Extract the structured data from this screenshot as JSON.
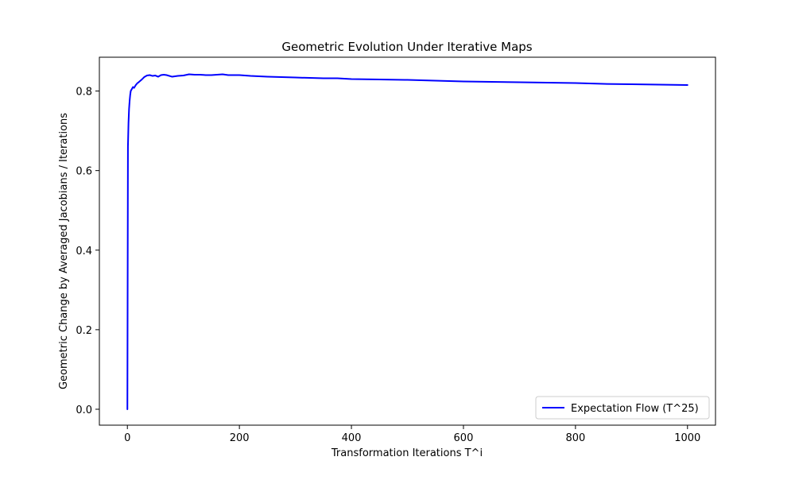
{
  "chart_data": {
    "type": "line",
    "title": "Geometric Evolution Under Iterative Maps",
    "xlabel": "Transformation Iterations T^i",
    "ylabel": "Geometric Change by Averaged Jacobians / Iterations",
    "xlim": [
      -50,
      1050
    ],
    "ylim": [
      -0.04,
      0.885
    ],
    "xticks": [
      0,
      200,
      400,
      600,
      800,
      1000
    ],
    "xtick_labels": [
      "0",
      "200",
      "400",
      "600",
      "800",
      "1000"
    ],
    "yticks": [
      0.0,
      0.2,
      0.4,
      0.6,
      0.8
    ],
    "ytick_labels": [
      "0.0",
      "0.2",
      "0.4",
      "0.6",
      "0.8"
    ],
    "grid": false,
    "legend_position": "lower-right",
    "series": [
      {
        "name": "Expectation Flow (T^25)",
        "color": "#0000ff",
        "x": [
          0,
          1,
          2,
          3,
          4,
          5,
          6,
          8,
          10,
          12,
          15,
          18,
          20,
          25,
          30,
          35,
          40,
          45,
          50,
          55,
          60,
          65,
          70,
          80,
          90,
          100,
          110,
          120,
          130,
          140,
          150,
          160,
          170,
          180,
          190,
          200,
          220,
          250,
          300,
          350,
          375,
          400,
          450,
          500,
          550,
          600,
          650,
          700,
          750,
          800,
          850,
          900,
          950,
          1000
        ],
        "y": [
          0.0,
          0.66,
          0.72,
          0.755,
          0.775,
          0.79,
          0.8,
          0.805,
          0.81,
          0.808,
          0.815,
          0.82,
          0.822,
          0.828,
          0.835,
          0.839,
          0.84,
          0.838,
          0.839,
          0.836,
          0.84,
          0.841,
          0.84,
          0.836,
          0.838,
          0.839,
          0.842,
          0.841,
          0.841,
          0.84,
          0.84,
          0.841,
          0.842,
          0.84,
          0.84,
          0.84,
          0.838,
          0.836,
          0.834,
          0.832,
          0.832,
          0.83,
          0.829,
          0.828,
          0.826,
          0.824,
          0.823,
          0.822,
          0.821,
          0.82,
          0.818,
          0.817,
          0.816,
          0.815
        ]
      }
    ]
  }
}
